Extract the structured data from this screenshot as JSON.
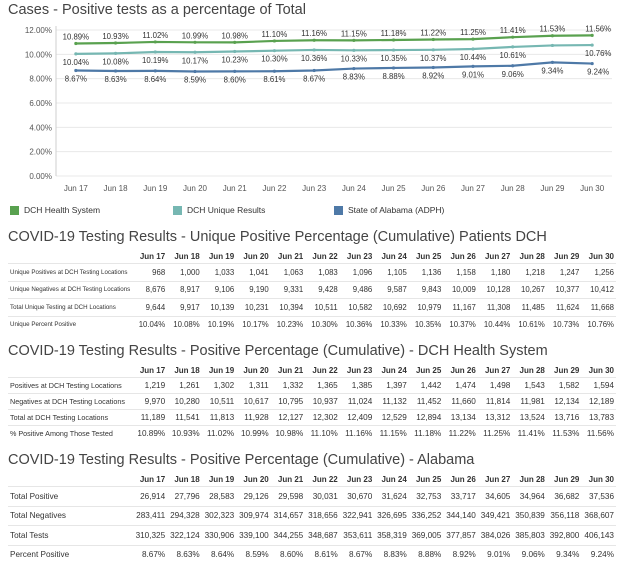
{
  "chart_title": "Cases - Positive tests as a percentage of Total",
  "chart_data": {
    "type": "line",
    "title": "Cases - Positive tests as a percentage of Total",
    "xlabel": "",
    "ylabel": "",
    "ylim": [
      0,
      12
    ],
    "grid": true,
    "legend": "bottom",
    "categories": [
      "Jun 17",
      "Jun 18",
      "Jun 19",
      "Jun 20",
      "Jun 21",
      "Jun 22",
      "Jun 23",
      "Jun 24",
      "Jun 25",
      "Jun 26",
      "Jun 27",
      "Jun 28",
      "Jun 29",
      "Jun 30"
    ],
    "y_ticks": [
      "0.00%",
      "2.00%",
      "4.00%",
      "6.00%",
      "8.00%",
      "10.00%",
      "12.00%"
    ],
    "series": [
      {
        "name": "DCH Health System",
        "color": "#59a14f",
        "values": [
          10.89,
          10.93,
          11.02,
          10.99,
          10.98,
          11.1,
          11.16,
          11.15,
          11.18,
          11.22,
          11.25,
          11.41,
          11.53,
          11.56
        ],
        "labels": [
          "10.89%",
          "10.93%",
          "11.02%",
          "10.99%",
          "10.98%",
          "11.10%",
          "11.16%",
          "11.15%",
          "11.18%",
          "11.22%",
          "11.25%",
          "11.41%",
          "11.53%",
          "11.56%"
        ]
      },
      {
        "name": "DCH Unique Results",
        "color": "#76b7b2",
        "values": [
          10.04,
          10.08,
          10.19,
          10.17,
          10.23,
          10.3,
          10.36,
          10.33,
          10.35,
          10.37,
          10.44,
          10.61,
          10.73,
          10.76
        ],
        "labels": [
          "10.04%",
          "10.08%",
          "10.19%",
          "10.17%",
          "10.23%",
          "10.30%",
          "10.36%",
          "10.33%",
          "10.35%",
          "10.37%",
          "10.44%",
          "10.61%",
          "",
          "10.76%"
        ]
      },
      {
        "name": "State of Alabama (ADPH)",
        "color": "#4e79a7",
        "values": [
          8.67,
          8.63,
          8.64,
          8.59,
          8.6,
          8.61,
          8.67,
          8.83,
          8.88,
          8.92,
          9.01,
          9.06,
          9.34,
          9.24
        ],
        "labels": [
          "8.67%",
          "8.63%",
          "8.64%",
          "8.59%",
          "8.60%",
          "8.61%",
          "8.67%",
          "8.83%",
          "8.88%",
          "8.92%",
          "9.01%",
          "9.06%",
          "9.34%",
          "9.24%"
        ]
      }
    ]
  },
  "tables": [
    {
      "title": "COVID-19 Testing Results - Unique Positive Percentage (Cumulative) Patients DCH",
      "columns": [
        "Jun 17",
        "Jun 18",
        "Jun 19",
        "Jun 20",
        "Jun 21",
        "Jun 22",
        "Jun 23",
        "Jun 24",
        "Jun 25",
        "Jun 26",
        "Jun 27",
        "Jun 28",
        "Jun 29",
        "Jun 30"
      ],
      "rows": [
        {
          "label": "Unique Positives at DCH Testing Locations",
          "values": [
            "968",
            "1,000",
            "1,033",
            "1,041",
            "1,063",
            "1,083",
            "1,096",
            "1,105",
            "1,136",
            "1,158",
            "1,180",
            "1,218",
            "1,247",
            "1,256"
          ]
        },
        {
          "label": "Unique Negatives at DCH Testing Locations",
          "values": [
            "8,676",
            "8,917",
            "9,106",
            "9,190",
            "9,331",
            "9,428",
            "9,486",
            "9,587",
            "9,843",
            "10,009",
            "10,128",
            "10,267",
            "10,377",
            "10,412"
          ]
        },
        {
          "label": "Total Unique Testing at DCH Locations",
          "values": [
            "9,644",
            "9,917",
            "10,139",
            "10,231",
            "10,394",
            "10,511",
            "10,582",
            "10,692",
            "10,979",
            "11,167",
            "11,308",
            "11,485",
            "11,624",
            "11,668"
          ]
        },
        {
          "label": "Unique Percent Positive",
          "values": [
            "10.04%",
            "10.08%",
            "10.19%",
            "10.17%",
            "10.23%",
            "10.30%",
            "10.36%",
            "10.33%",
            "10.35%",
            "10.37%",
            "10.44%",
            "10.61%",
            "10.73%",
            "10.76%"
          ]
        }
      ]
    },
    {
      "title": "COVID-19 Testing Results - Positive Percentage (Cumulative) - DCH Health System",
      "columns": [
        "Jun 17",
        "Jun 18",
        "Jun 19",
        "Jun 20",
        "Jun 21",
        "Jun 22",
        "Jun 23",
        "Jun 24",
        "Jun 25",
        "Jun 26",
        "Jun 27",
        "Jun 28",
        "Jun 29",
        "Jun 30"
      ],
      "rows": [
        {
          "label": "Positives at DCH Testing Locations",
          "values": [
            "1,219",
            "1,261",
            "1,302",
            "1,311",
            "1,332",
            "1,365",
            "1,385",
            "1,397",
            "1,442",
            "1,474",
            "1,498",
            "1,543",
            "1,582",
            "1,594"
          ]
        },
        {
          "label": "Negatives at DCH Testing Locations",
          "values": [
            "9,970",
            "10,280",
            "10,511",
            "10,617",
            "10,795",
            "10,937",
            "11,024",
            "11,132",
            "11,452",
            "11,660",
            "11,814",
            "11,981",
            "12,134",
            "12,189"
          ]
        },
        {
          "label": "Total at DCH Testing Locations",
          "values": [
            "11,189",
            "11,541",
            "11,813",
            "11,928",
            "12,127",
            "12,302",
            "12,409",
            "12,529",
            "12,894",
            "13,134",
            "13,312",
            "13,524",
            "13,716",
            "13,783"
          ]
        },
        {
          "label": "% Positive Among Those Tested",
          "values": [
            "10.89%",
            "10.93%",
            "11.02%",
            "10.99%",
            "10.98%",
            "11.10%",
            "11.16%",
            "11.15%",
            "11.18%",
            "11.22%",
            "11.25%",
            "11.41%",
            "11.53%",
            "11.56%"
          ]
        }
      ]
    },
    {
      "title": "COVID-19 Testing Results - Positive Percentage (Cumulative) - Alabama",
      "columns": [
        "Jun 17",
        "Jun 18",
        "Jun 19",
        "Jun 20",
        "Jun 21",
        "Jun 22",
        "Jun 23",
        "Jun 24",
        "Jun 25",
        "Jun 26",
        "Jun 27",
        "Jun 28",
        "Jun 29",
        "Jun 30"
      ],
      "rows": [
        {
          "label": "Total Positive",
          "values": [
            "26,914",
            "27,796",
            "28,583",
            "29,126",
            "29,598",
            "30,031",
            "30,670",
            "31,624",
            "32,753",
            "33,717",
            "34,605",
            "34,964",
            "36,682",
            "37,536"
          ]
        },
        {
          "label": "Total Negatives",
          "values": [
            "283,411",
            "294,328",
            "302,323",
            "309,974",
            "314,657",
            "318,656",
            "322,941",
            "326,695",
            "336,252",
            "344,140",
            "349,421",
            "350,839",
            "356,118",
            "368,607"
          ]
        },
        {
          "label": "Total Tests",
          "values": [
            "310,325",
            "322,124",
            "330,906",
            "339,100",
            "344,255",
            "348,687",
            "353,611",
            "358,319",
            "369,005",
            "377,857",
            "384,026",
            "385,803",
            "392,800",
            "406,143"
          ]
        },
        {
          "label": "Percent Positive",
          "values": [
            "8.67%",
            "8.63%",
            "8.64%",
            "8.59%",
            "8.60%",
            "8.61%",
            "8.67%",
            "8.83%",
            "8.88%",
            "8.92%",
            "9.01%",
            "9.06%",
            "9.34%",
            "9.24%"
          ]
        }
      ]
    }
  ]
}
